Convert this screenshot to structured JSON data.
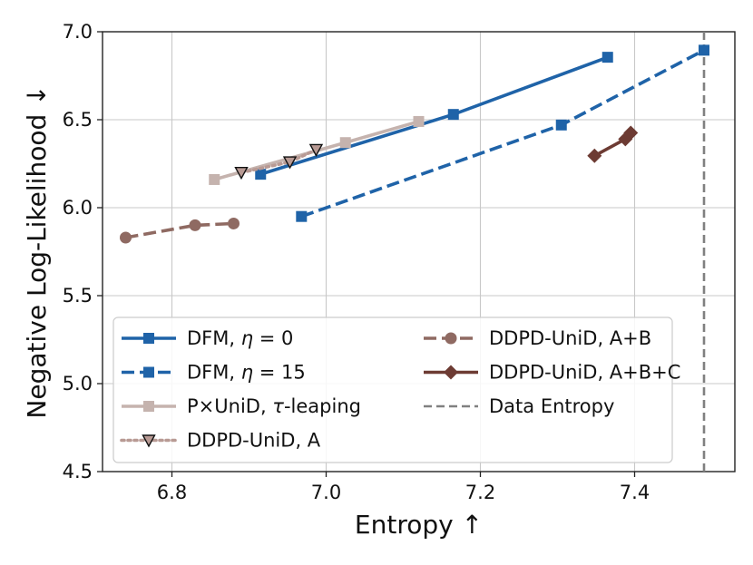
{
  "chart_data": {
    "type": "line",
    "xlabel": "Entropy ↑",
    "ylabel": "Negative Log-Likelihood ↓",
    "xlim": [
      6.71,
      7.53
    ],
    "ylim": [
      4.5,
      7.0
    ],
    "xticks": [
      6.8,
      7.0,
      7.2,
      7.4
    ],
    "xtick_labels": [
      "6.8",
      "7.0",
      "7.2",
      "7.4"
    ],
    "yticks": [
      4.5,
      5.0,
      5.5,
      6.0,
      6.5,
      7.0
    ],
    "ytick_labels": [
      "4.5",
      "5.0",
      "5.5",
      "6.0",
      "6.5",
      "7.0"
    ],
    "grid": true,
    "legend_position": "lower-left",
    "reference_line": {
      "name": "Data Entropy",
      "x": 7.49,
      "color": "#808080",
      "style": "dashed"
    },
    "series": [
      {
        "name": "DFM, η = 0",
        "legend_parts": [
          "DFM, ",
          "η",
          " = 0"
        ],
        "color": "#1f63a8",
        "line_style": "solid",
        "marker": "square",
        "points": [
          [
            6.915,
            6.19
          ],
          [
            7.165,
            6.53
          ],
          [
            7.365,
            6.855
          ]
        ]
      },
      {
        "name": "DFM, η = 15",
        "legend_parts": [
          "DFM, ",
          "η",
          " = 15"
        ],
        "color": "#1f63a8",
        "line_style": "dashed",
        "marker": "square",
        "points": [
          [
            6.968,
            5.95
          ],
          [
            7.305,
            6.47
          ],
          [
            7.49,
            6.895
          ]
        ]
      },
      {
        "name": "P×UniD, τ-leaping",
        "legend_parts": [
          "P×UniD, ",
          "τ",
          "-leaping"
        ],
        "color": "#c5b3ae",
        "line_style": "solid",
        "marker": "square",
        "points": [
          [
            6.855,
            6.16
          ],
          [
            7.025,
            6.37
          ],
          [
            7.12,
            6.49
          ]
        ]
      },
      {
        "name": "DDPD-UniD, A",
        "legend_parts": [
          "DDPD-UniD, A",
          "",
          ""
        ],
        "color": "#b89a94",
        "line_style": "dotted",
        "marker": "triangle-down",
        "points": [
          [
            6.89,
            6.2
          ],
          [
            6.953,
            6.26
          ],
          [
            6.987,
            6.33
          ]
        ]
      },
      {
        "name": "DDPD-UniD, A+B",
        "legend_parts": [
          "DDPD-UniD, A+B",
          "",
          ""
        ],
        "color": "#8f6a62",
        "line_style": "dashed",
        "marker": "circle",
        "points": [
          [
            6.74,
            5.83
          ],
          [
            6.83,
            5.9
          ],
          [
            6.88,
            5.91
          ]
        ]
      },
      {
        "name": "DDPD-UniD, A+B+C",
        "legend_parts": [
          "DDPD-UniD, A+B+C",
          "",
          ""
        ],
        "color": "#6d3b33",
        "line_style": "solid",
        "marker": "diamond",
        "points": [
          [
            7.348,
            6.295
          ],
          [
            7.388,
            6.39
          ],
          [
            7.395,
            6.425
          ]
        ]
      }
    ]
  }
}
